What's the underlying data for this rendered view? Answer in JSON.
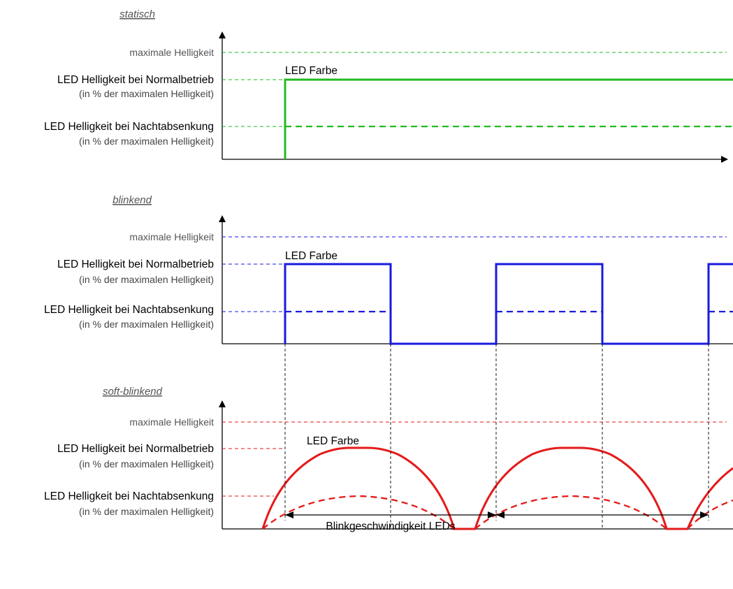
{
  "panels": [
    {
      "id": "statisch",
      "title": "statisch",
      "color": "#22bb22",
      "mode": "static",
      "labels": {
        "max": "maximale Helligkeit",
        "normal": "LED Helligkeit bei Normalbetrieb",
        "normal_sub": "(in % der maximalen Helligkeit)",
        "night": "LED Helligkeit bei Nachtabsenkung",
        "night_sub": "(in % der maximalen Helligkeit)",
        "led_color": "LED Farbe"
      }
    },
    {
      "id": "blinkend",
      "title": "blinkend",
      "color": "#1a1adf",
      "mode": "blink",
      "labels": {
        "max": "maximale Helligkeit",
        "normal": "LED Helligkeit bei Normalbetrieb",
        "normal_sub": "(in % der maximalen Helligkeit)",
        "night": "LED Helligkeit bei Nachtabsenkung",
        "night_sub": "(in % der maximalen Helligkeit)",
        "led_color": "LED Farbe"
      }
    },
    {
      "id": "soft-blinkend",
      "title": "soft-blinkend",
      "color": "#e41a1a",
      "mode": "soft",
      "labels": {
        "max": "maximale Helligkeit",
        "normal": "LED Helligkeit bei Normalbetrieb",
        "normal_sub": "(in % der maximalen Helligkeit)",
        "night": "LED Helligkeit bei Nachtabsenkung",
        "night_sub": "(in % der maximalen Helligkeit)",
        "led_color": "LED Farbe"
      }
    }
  ],
  "dimension": {
    "label": "Blinkgeschwindigkeit LEDs"
  }
}
